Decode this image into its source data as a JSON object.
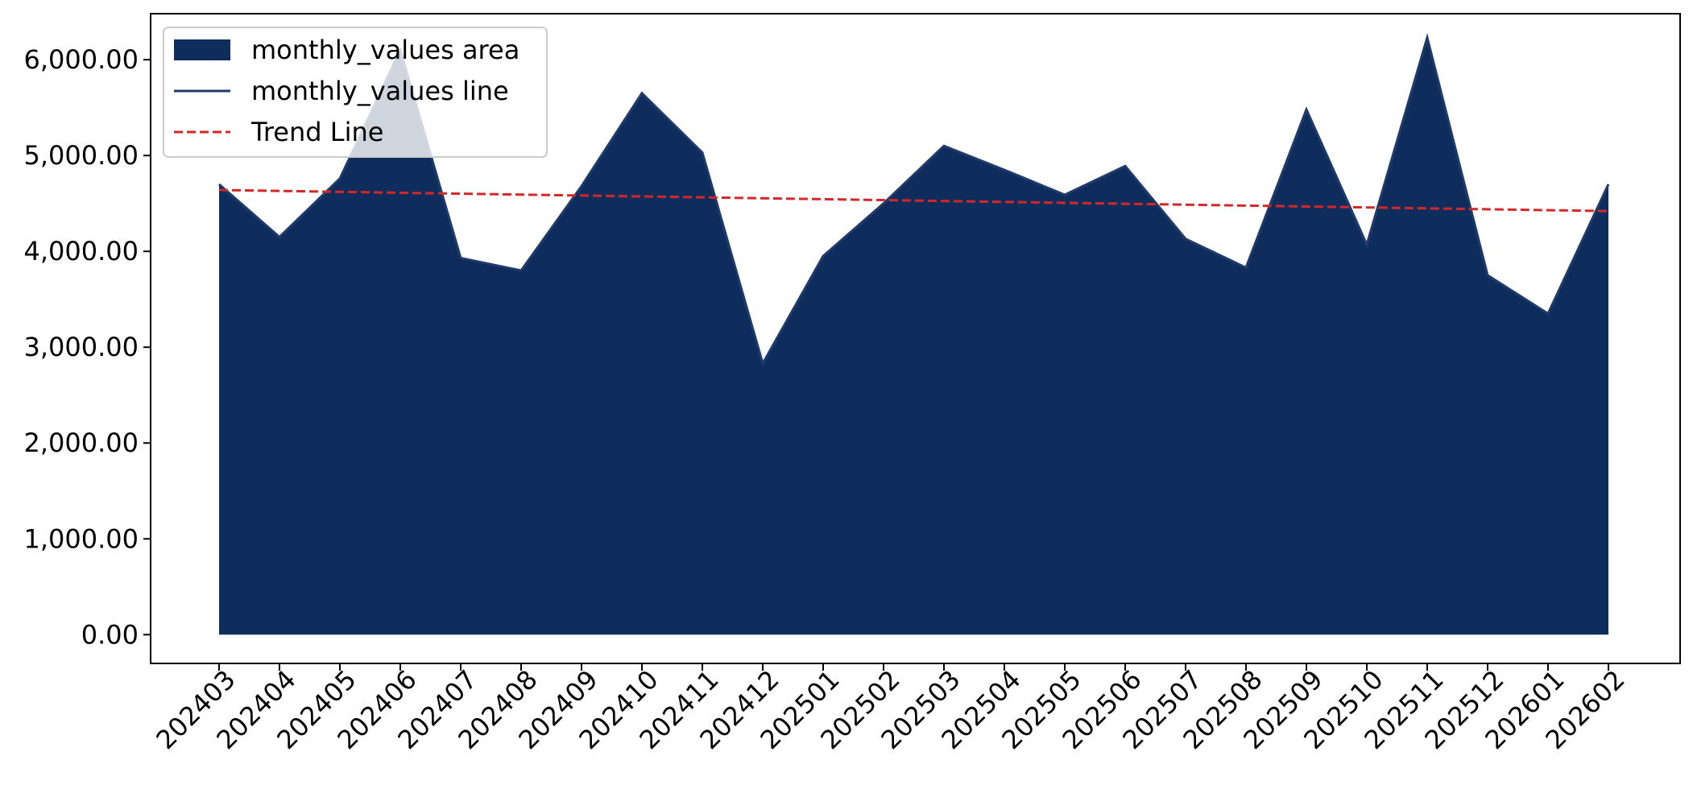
{
  "chart_data": {
    "type": "area",
    "title": "",
    "xlabel": "",
    "ylabel": "",
    "categories": [
      "202403",
      "202404",
      "202405",
      "202406",
      "202407",
      "202408",
      "202409",
      "202410",
      "202411",
      "202412",
      "202501",
      "202502",
      "202503",
      "202504",
      "202505",
      "202506",
      "202507",
      "202508",
      "202509",
      "202510",
      "202511",
      "202512",
      "202601",
      "202602"
    ],
    "series": [
      {
        "name": "monthly_values",
        "values": [
          4700,
          4150,
          4760,
          6100,
          3930,
          3800,
          4680,
          5650,
          5030,
          2830,
          3950,
          4500,
          5100,
          4850,
          4590,
          4890,
          4130,
          3830,
          5480,
          4070,
          6230,
          3750,
          3350,
          4700
        ]
      }
    ],
    "trend": {
      "start": 4640,
      "end": 4420
    },
    "ylim": [
      -300,
      6480
    ],
    "yticks": [
      0,
      1000,
      2000,
      3000,
      4000,
      5000,
      6000
    ],
    "ytick_labels": [
      "0.00",
      "1,000.00",
      "2,000.00",
      "3,000.00",
      "4,000.00",
      "5,000.00",
      "6,000.00"
    ],
    "legend": {
      "placement": "top-left",
      "items": [
        {
          "label": "monthly_values area",
          "kind": "patch"
        },
        {
          "label": "monthly_values line",
          "kind": "line"
        },
        {
          "label": "Trend Line",
          "kind": "dashed"
        }
      ]
    },
    "colors": {
      "area": "#0e2d5c",
      "line": "#1f3a6b",
      "trend": "#d62728",
      "axis": "#000000"
    },
    "grid": false
  }
}
